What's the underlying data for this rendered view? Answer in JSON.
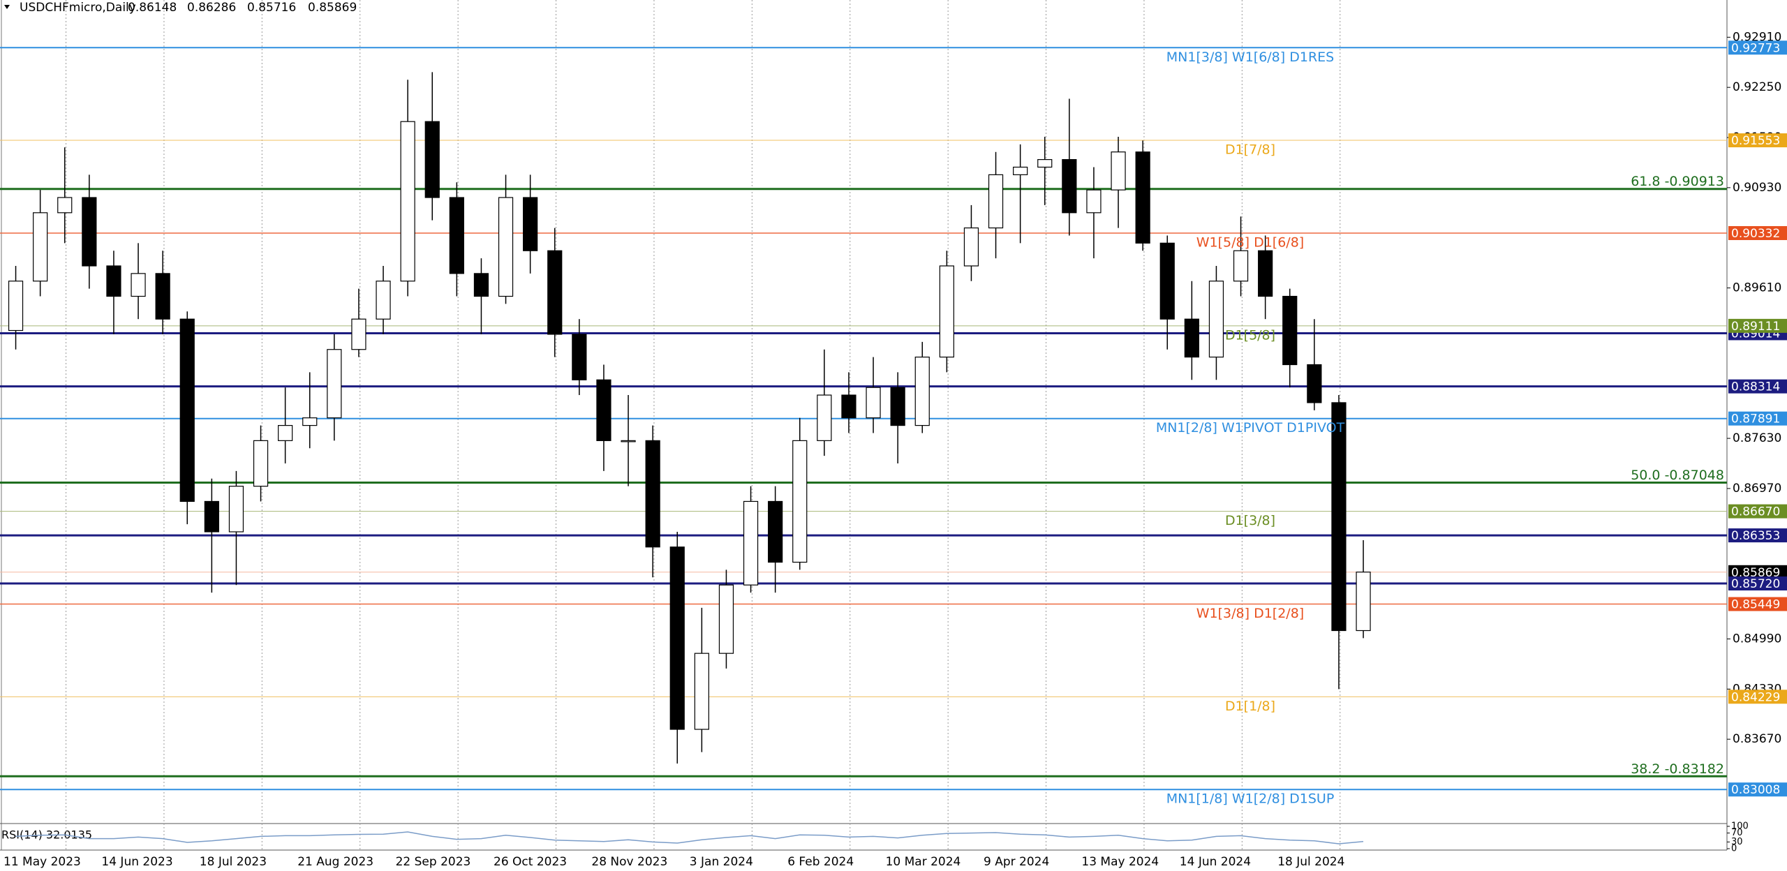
{
  "chart_data": {
    "type": "candlestick",
    "title": "USDCHFmicro,Daily",
    "title_values": [
      0.86148,
      0.86286,
      0.85716,
      0.85869
    ],
    "categories": [
      "11 May 2023",
      null,
      null,
      null,
      "14 Jun 2023",
      null,
      null,
      null,
      "18 Jul 2023",
      null,
      null,
      null,
      "21 Aug 2023",
      null,
      null,
      null,
      "22 Sep 2023",
      null,
      null,
      null,
      "26 Oct 2023",
      null,
      null,
      null,
      "28 Nov 2023",
      null,
      null,
      null,
      "3 Jan 2024",
      null,
      null,
      null,
      "6 Feb 2024",
      null,
      null,
      null,
      "10 Mar 2024",
      null,
      null,
      null,
      "9 Apr 2024",
      null,
      null,
      null,
      "13 May 2024",
      null,
      null,
      null,
      "14 Jun 2024",
      null,
      null,
      null,
      "18 Jul 2024",
      null,
      null,
      null
    ],
    "open": [
      0.8905,
      0.897,
      0.906,
      0.908,
      0.899,
      0.895,
      0.898,
      0.892,
      0.868,
      0.864,
      0.87,
      0.876,
      0.878,
      0.879,
      0.888,
      0.892,
      0.897,
      0.918,
      0.908,
      0.898,
      0.895,
      0.908,
      0.901,
      0.89,
      0.884,
      0.876,
      0.876,
      0.862,
      0.838,
      0.848,
      0.857,
      0.868,
      0.86,
      0.876,
      0.882,
      0.879,
      0.883,
      0.878,
      0.887,
      0.899,
      0.904,
      0.911,
      0.912,
      0.913,
      0.906,
      0.909,
      0.914,
      0.902,
      0.892,
      0.887,
      0.897,
      0.901,
      0.895,
      0.886,
      0.881,
      0.851
    ],
    "high": [
      0.899,
      0.909,
      0.9146,
      0.911,
      0.901,
      0.902,
      0.901,
      0.893,
      0.871,
      0.872,
      0.878,
      0.883,
      0.885,
      0.89,
      0.896,
      0.899,
      0.9235,
      0.9245,
      0.91,
      0.9,
      0.911,
      0.911,
      0.904,
      0.892,
      0.886,
      0.882,
      0.878,
      0.864,
      0.854,
      0.859,
      0.87,
      0.87,
      0.879,
      0.888,
      0.885,
      0.887,
      0.885,
      0.889,
      0.901,
      0.907,
      0.914,
      0.915,
      0.916,
      0.921,
      0.912,
      0.916,
      0.9155,
      0.903,
      0.897,
      0.899,
      0.9055,
      0.903,
      0.896,
      0.892,
      0.882,
      0.8629
    ],
    "low": [
      0.888,
      0.895,
      0.902,
      0.896,
      0.89,
      0.892,
      0.89,
      0.865,
      0.856,
      0.857,
      0.868,
      0.873,
      0.875,
      0.876,
      0.887,
      0.89,
      0.895,
      0.905,
      0.895,
      0.89,
      0.894,
      0.898,
      0.887,
      0.882,
      0.872,
      0.87,
      0.858,
      0.8335,
      0.835,
      0.846,
      0.856,
      0.856,
      0.859,
      0.874,
      0.877,
      0.877,
      0.873,
      0.877,
      0.885,
      0.897,
      0.9,
      0.902,
      0.907,
      0.903,
      0.9,
      0.904,
      0.901,
      0.888,
      0.884,
      0.884,
      0.895,
      0.892,
      0.883,
      0.88,
      0.8433,
      0.85
    ],
    "close": [
      0.897,
      0.906,
      0.908,
      0.899,
      0.895,
      0.898,
      0.892,
      0.868,
      0.864,
      0.87,
      0.876,
      0.878,
      0.879,
      0.888,
      0.892,
      0.897,
      0.918,
      0.908,
      0.898,
      0.895,
      0.908,
      0.901,
      0.89,
      0.884,
      0.876,
      0.876,
      0.862,
      0.838,
      0.848,
      0.857,
      0.868,
      0.86,
      0.876,
      0.882,
      0.879,
      0.883,
      0.878,
      0.887,
      0.899,
      0.904,
      0.911,
      0.912,
      0.913,
      0.906,
      0.909,
      0.914,
      0.902,
      0.892,
      0.887,
      0.897,
      0.901,
      0.895,
      0.886,
      0.881,
      0.851,
      0.8587
    ],
    "ylim": [
      0.8256,
      0.934
    ],
    "yticks": [
      {
        "value": 0.9291,
        "label": "0.92910"
      },
      {
        "value": 0.9225,
        "label": "0.92250"
      },
      {
        "value": 0.9159,
        "label": "0.91590"
      },
      {
        "value": 0.9093,
        "label": "0.90930"
      },
      {
        "value": 0.8961,
        "label": "0.89610"
      },
      {
        "value": 0.8763,
        "label": "0.87630"
      },
      {
        "value": 0.8697,
        "label": "0.86970"
      },
      {
        "value": 0.8499,
        "label": "0.84990"
      },
      {
        "value": 0.8433,
        "label": "0.84330"
      },
      {
        "value": 0.8367,
        "label": "0.83670"
      }
    ],
    "grid": true,
    "levels": [
      {
        "value": 0.92773,
        "color": "#2f8fe0",
        "width": 2,
        "box": "#2f8fe0",
        "text": "MN1[3/8] W1[6/8] D1RES"
      },
      {
        "value": 0.91553,
        "color": "#f0c060",
        "width": 1,
        "box": "#eba81a",
        "text": "D1[7/8]"
      },
      {
        "value": 0.90913,
        "color": "#1f6e1f",
        "width": 3,
        "text": "61.8 -0.90913"
      },
      {
        "value": 0.90332,
        "color": "#ee6a40",
        "width": 1.5,
        "box": "#e8501e",
        "text": "W1[5/8] D1[6/8]"
      },
      {
        "value": 0.89014,
        "color": "#1c1c80",
        "width": 3,
        "box": "#1c1c80"
      },
      {
        "value": 0.89111,
        "color": "#a8b878",
        "width": 1,
        "box": "#6b8e23",
        "text": "D1[5/8]"
      },
      {
        "value": 0.88314,
        "color": "#1c1c80",
        "width": 3,
        "box": "#1c1c80"
      },
      {
        "value": 0.87891,
        "color": "#2f8fe0",
        "width": 2,
        "box": "#2f8fe0",
        "text": "MN1[2/8] W1PIVOT D1PIVOT"
      },
      {
        "value": 0.87048,
        "color": "#1f6e1f",
        "width": 3,
        "text": "50.0 -0.87048"
      },
      {
        "value": 0.8667,
        "label": "0.86670",
        "color": "#a8b878",
        "width": 1,
        "box": "#6b8e23",
        "text": "D1[3/8]"
      },
      {
        "value": 0.86353,
        "color": "#1c1c80",
        "width": 3,
        "box": "#1c1c80"
      },
      {
        "value": 0.85869,
        "color": "#f6b8a0",
        "width": 1,
        "box": "#000000"
      },
      {
        "value": 0.8572,
        "label": "0.85720",
        "color": "#1c1c80",
        "width": 3,
        "box": "#1c1c80"
      },
      {
        "value": 0.85449,
        "color": "#ee6a40",
        "width": 1.5,
        "box": "#e8501e",
        "text": "W1[3/8] D1[2/8]"
      },
      {
        "value": 0.84229,
        "color": "#f0c060",
        "width": 1,
        "box": "#eba81a",
        "text": "D1[1/8]"
      },
      {
        "value": 0.83182,
        "color": "#1f6e1f",
        "width": 3,
        "text": "38.2 -0.83182"
      },
      {
        "value": 0.83008,
        "color": "#2f8fe0",
        "width": 2,
        "box": "#2f8fe0",
        "text": "MN1[1/8] W1[2/8] D1SUP"
      }
    ],
    "rsi": {
      "title": "RSI(14) 32.0135",
      "color": "#7a9cc8",
      "ylim": [
        0,
        100
      ],
      "yticks": [
        100,
        70,
        30,
        0
      ],
      "values": [
        55,
        60,
        62,
        45,
        45,
        52,
        45,
        28,
        35,
        45,
        55,
        58,
        58,
        62,
        64,
        65,
        75,
        55,
        42,
        45,
        60,
        50,
        38,
        35,
        32,
        40,
        30,
        25,
        40,
        50,
        58,
        45,
        62,
        60,
        52,
        55,
        48,
        60,
        68,
        70,
        72,
        65,
        62,
        52,
        55,
        60,
        45,
        35,
        38,
        55,
        58,
        45,
        38,
        35,
        22,
        32.0135
      ]
    }
  }
}
